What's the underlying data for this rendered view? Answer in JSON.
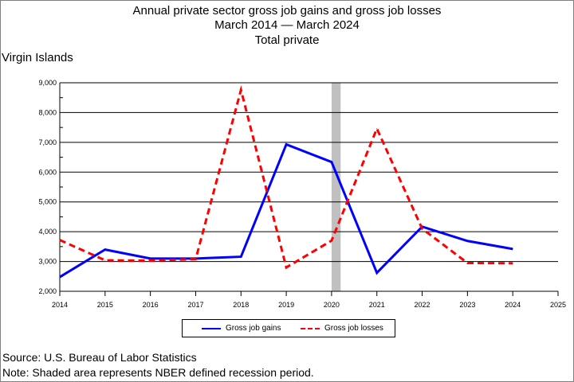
{
  "chart_data": {
    "type": "line",
    "title": "Annual private sector gross job gains and gross job losses",
    "subtitle": "March 2014 — March 2024",
    "subtitle2": "Total private",
    "region_label": "Virgin Islands",
    "x": [
      2014,
      2015,
      2016,
      2017,
      2018,
      2019,
      2020,
      2021,
      2022,
      2023,
      2024
    ],
    "x_ticks": [
      "2014",
      "2015",
      "2016",
      "2017",
      "2018",
      "2019",
      "2020",
      "2021",
      "2022",
      "2023",
      "2024",
      "2025"
    ],
    "xlim": [
      2014,
      2025
    ],
    "ylim": [
      2000,
      9000
    ],
    "y_ticks": [
      "2,000",
      "3,000",
      "4,000",
      "5,000",
      "6,000",
      "7,000",
      "8,000",
      "9,000"
    ],
    "grid": true,
    "recession": {
      "start": 2020.0,
      "end": 2020.2
    },
    "series": [
      {
        "name": "Gross job gains",
        "color": "#0000ff",
        "style": "solid",
        "values": [
          2480,
          3400,
          3100,
          3100,
          3160,
          6930,
          6340,
          2620,
          4170,
          3690,
          3420
        ]
      },
      {
        "name": "Gross job losses",
        "color": "#ff0000",
        "style": "dashed",
        "values": [
          3720,
          3040,
          3030,
          3080,
          8760,
          2800,
          3700,
          7460,
          4100,
          2950,
          2940
        ]
      }
    ],
    "legend_position": "bottom"
  },
  "footer": {
    "source": "Source: U.S. Bureau of Labor Statistics",
    "note": "Note: Shaded area represents NBER defined recession period."
  }
}
